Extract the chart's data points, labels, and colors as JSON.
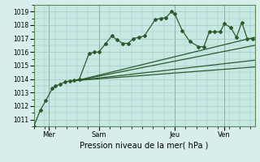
{
  "xlabel": "Pression niveau de la mer( hPa )",
  "background_color": "#d8eeec",
  "plot_bg": "#c8e8e4",
  "grid_color": "#a0c8c4",
  "line_color": "#2d5a2d",
  "ylim": [
    1010.5,
    1019.5
  ],
  "yticks": [
    1011,
    1012,
    1013,
    1014,
    1015,
    1016,
    1017,
    1018,
    1019
  ],
  "xlim": [
    0.0,
    10.2
  ],
  "vlines_x": [
    0.7,
    3.0,
    6.5,
    8.8
  ],
  "vlines_labels": [
    "Mer",
    "Sam",
    "Jeu",
    "Ven"
  ],
  "series1_x": [
    0.0,
    0.3,
    0.55,
    0.85,
    1.0,
    1.2,
    1.45,
    1.65,
    1.85,
    2.1,
    2.55,
    2.8,
    3.0,
    3.3,
    3.6,
    3.85,
    4.1,
    4.35,
    4.6,
    4.85,
    5.1,
    5.6,
    5.85,
    6.1,
    6.35,
    6.5,
    6.85,
    7.2,
    7.6,
    7.85,
    8.1,
    8.35,
    8.6,
    8.8,
    9.1,
    9.35,
    9.6,
    9.85,
    10.1
  ],
  "series1_y": [
    1010.5,
    1011.7,
    1012.4,
    1013.3,
    1013.5,
    1013.6,
    1013.8,
    1013.85,
    1013.9,
    1014.0,
    1015.9,
    1016.0,
    1016.0,
    1016.6,
    1017.2,
    1016.9,
    1016.65,
    1016.65,
    1017.0,
    1017.1,
    1017.2,
    1018.4,
    1018.5,
    1018.55,
    1019.0,
    1018.85,
    1017.6,
    1016.8,
    1016.4,
    1016.4,
    1017.5,
    1017.5,
    1017.5,
    1018.1,
    1017.8,
    1017.1,
    1018.2,
    1017.0,
    1017.0
  ],
  "lines": [
    {
      "x": [
        2.0,
        10.2
      ],
      "y": [
        1013.9,
        1017.1
      ]
    },
    {
      "x": [
        2.0,
        10.2
      ],
      "y": [
        1013.9,
        1016.5
      ]
    },
    {
      "x": [
        2.0,
        10.2
      ],
      "y": [
        1013.9,
        1015.4
      ]
    },
    {
      "x": [
        2.0,
        10.2
      ],
      "y": [
        1013.9,
        1014.9
      ]
    }
  ]
}
